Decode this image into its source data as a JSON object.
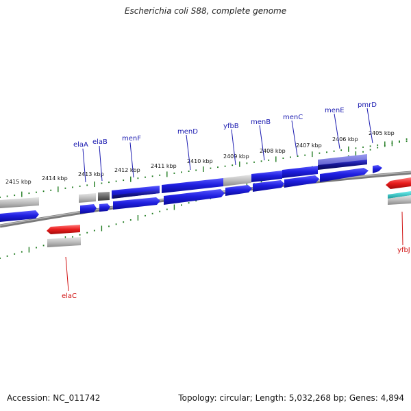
{
  "title": "Escherichia coli S88, complete genome",
  "footer": {
    "accession": "Accession: NC_011742",
    "summary": "Topology: circular; Length: 5,032,268 bp; Genes: 4,894"
  },
  "colors": {
    "forward_gene": "#1f1fe0",
    "reverse_gene": "#e01f1f",
    "gene_label_forward": "#1a1ab0",
    "gene_label_reverse": "#d01010",
    "tick": "#1e7a1e",
    "backbone": "#808080"
  },
  "scale_labels": [
    "2415 kbp",
    "2414 kbp",
    "2413 kbp",
    "2412 kbp",
    "2411 kbp",
    "2410 kbp",
    "2409 kbp",
    "2408 kbp",
    "2407 kbp",
    "2406 kbp",
    "2405 kbp"
  ],
  "gene_labels": {
    "elaA": "elaA",
    "elaB": "elaB",
    "menF": "menF",
    "menD": "menD",
    "yfbB": "yfbB",
    "menB": "menB",
    "menC": "menC",
    "menE": "menE",
    "pmrD": "pmrD",
    "elaC": "elaC",
    "yfbJ": "yfbJ"
  }
}
